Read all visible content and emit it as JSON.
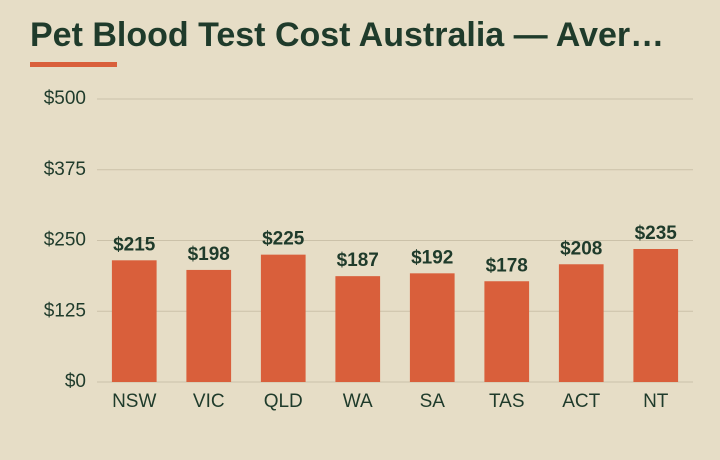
{
  "chart_data": {
    "type": "bar",
    "title": "Pet Blood Test Cost Australia — Aver…",
    "categories": [
      "NSW",
      "VIC",
      "QLD",
      "WA",
      "SA",
      "TAS",
      "ACT",
      "NT"
    ],
    "values": [
      215,
      198,
      225,
      187,
      192,
      178,
      208,
      235
    ],
    "value_labels": [
      "$215",
      "$198",
      "$225",
      "$187",
      "$192",
      "$178",
      "$208",
      "$235"
    ],
    "color": "#d95f3b",
    "ylim": [
      0,
      500
    ],
    "yticks": [
      {
        "value": 0,
        "label": "$0"
      },
      {
        "value": 125,
        "label": "$125"
      },
      {
        "value": 250,
        "label": "$250"
      },
      {
        "value": 375,
        "label": "$375"
      },
      {
        "value": 500,
        "label": "$500"
      }
    ],
    "grid": true
  }
}
